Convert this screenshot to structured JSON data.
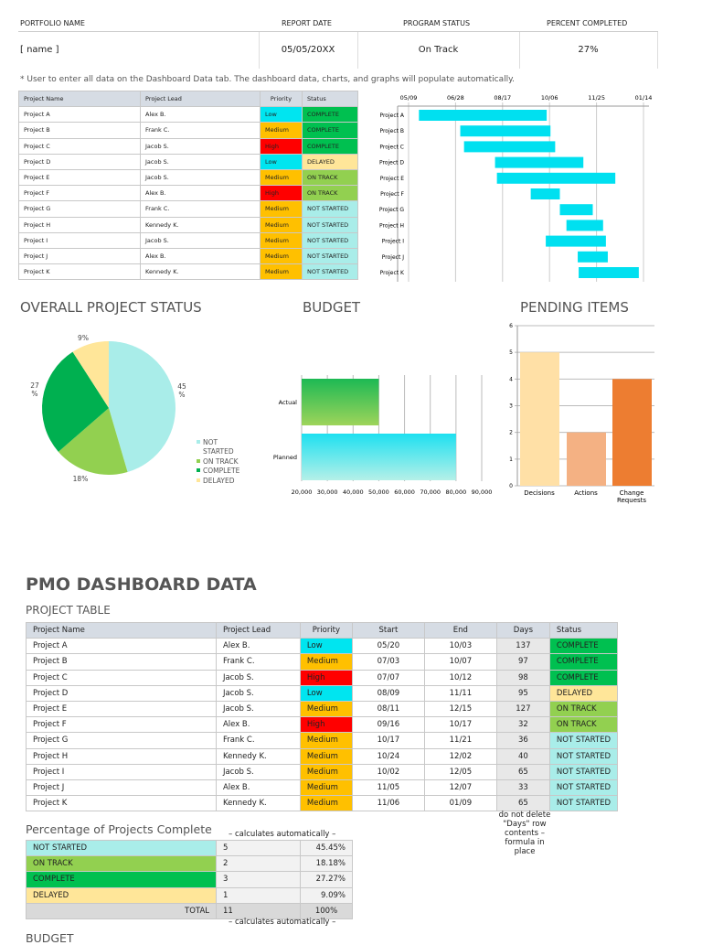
{
  "header": {
    "labels": [
      "PORTFOLIO NAME",
      "REPORT DATE",
      "PROGRAM STATUS",
      "PERCENT COMPLETED"
    ],
    "values": [
      "[ name ]",
      "05/05/20XX",
      "On Track",
      "27%"
    ]
  },
  "note": "* User to enter all data on the Dashboard Data tab.  The dashboard data, charts, and graphs will populate automatically.",
  "colors": {
    "low": "#00e5f0",
    "medium": "#ffc000",
    "high": "#ff0000",
    "complete": "#00c050",
    "on_track": "#92d050",
    "delayed": "#ffe699",
    "not_started": "#a9ede9",
    "gantt": "#00e0f0",
    "header": "#d6dce4"
  },
  "project_columns": [
    "Project Name",
    "Project Lead",
    "Priority",
    "Start",
    "End",
    "Days",
    "Status"
  ],
  "projects": [
    {
      "name": "Project A",
      "lead": "Alex B.",
      "priority": "Low",
      "start": "05/20",
      "end": "10/03",
      "days": "137",
      "status": "COMPLETE"
    },
    {
      "name": "Project B",
      "lead": "Frank C.",
      "priority": "Medium",
      "start": "07/03",
      "end": "10/07",
      "days": "97",
      "status": "COMPLETE"
    },
    {
      "name": "Project C",
      "lead": "Jacob S.",
      "priority": "High",
      "start": "07/07",
      "end": "10/12",
      "days": "98",
      "status": "COMPLETE"
    },
    {
      "name": "Project D",
      "lead": "Jacob S.",
      "priority": "Low",
      "start": "08/09",
      "end": "11/11",
      "days": "95",
      "status": "DELAYED"
    },
    {
      "name": "Project E",
      "lead": "Jacob S.",
      "priority": "Medium",
      "start": "08/11",
      "end": "12/15",
      "days": "127",
      "status": "ON TRACK"
    },
    {
      "name": "Project F",
      "lead": "Alex B.",
      "priority": "High",
      "start": "09/16",
      "end": "10/17",
      "days": "32",
      "status": "ON TRACK"
    },
    {
      "name": "Project G",
      "lead": "Frank C.",
      "priority": "Medium",
      "start": "10/17",
      "end": "11/21",
      "days": "36",
      "status": "NOT STARTED"
    },
    {
      "name": "Project H",
      "lead": "Kennedy K.",
      "priority": "Medium",
      "start": "10/24",
      "end": "12/02",
      "days": "40",
      "status": "NOT STARTED"
    },
    {
      "name": "Project I",
      "lead": "Jacob S.",
      "priority": "Medium",
      "start": "10/02",
      "end": "12/05",
      "days": "65",
      "status": "NOT STARTED"
    },
    {
      "name": "Project J",
      "lead": "Alex B.",
      "priority": "Medium",
      "start": "11/05",
      "end": "12/07",
      "days": "33",
      "status": "NOT STARTED"
    },
    {
      "name": "Project K",
      "lead": "Kennedy K.",
      "priority": "Medium",
      "start": "11/06",
      "end": "01/09",
      "days": "65",
      "status": "NOT STARTED"
    }
  ],
  "gantt": {
    "ticks": [
      "05/09",
      "06/28",
      "08/17",
      "10/06",
      "11/25",
      "01/14"
    ]
  },
  "sections": {
    "overall": "OVERALL PROJECT STATUS",
    "budget": "BUDGET",
    "pending": "PENDING ITEMS",
    "pmo_title": "PMO DASHBOARD DATA",
    "project_table": "PROJECT TABLE",
    "pct_title": "Percentage of Projects Complete",
    "calc_note": "– calculates automatically –",
    "days_note": "do not delete \"Days\" row contents – formula in place",
    "budget_bottom": "BUDGET"
  },
  "chart_data": [
    {
      "type": "pie",
      "slices": [
        {
          "label": "NOT STARTED",
          "value": 45.45,
          "data_label": "45 %",
          "color": "#a9ede9"
        },
        {
          "label": "ON TRACK",
          "value": 18.18,
          "data_label": "18%",
          "color": "#92d050"
        },
        {
          "label": "COMPLETE",
          "value": 27.27,
          "data_label": "27 %",
          "color": "#00b050"
        },
        {
          "label": "DELAYED",
          "value": 9.09,
          "data_label": "9%",
          "color": "#ffe699"
        }
      ],
      "legend": "right"
    },
    {
      "type": "bar",
      "orientation": "horizontal",
      "categories": [
        "Actual",
        "Planned"
      ],
      "values": [
        50000,
        80000
      ],
      "xlim": [
        20000,
        90000
      ],
      "ticks": [
        "20,000",
        "30,000",
        "40,000",
        "50,000",
        "60,000",
        "70,000",
        "80,000",
        "90,000"
      ]
    },
    {
      "type": "bar",
      "categories": [
        "Decisions",
        "Actions",
        "Change Requests"
      ],
      "values": [
        5,
        2,
        4
      ],
      "colors": [
        "#ffe0a6",
        "#f4b183",
        "#ed7d31"
      ],
      "ylim": [
        0,
        6
      ],
      "ticks": [
        "0",
        "1",
        "2",
        "3",
        "4",
        "5",
        "6"
      ]
    }
  ],
  "summary": {
    "rows": [
      {
        "label": "NOT STARTED",
        "count": "5",
        "pct": "45.45%"
      },
      {
        "label": "ON TRACK",
        "count": "2",
        "pct": "18.18%"
      },
      {
        "label": "COMPLETE",
        "count": "3",
        "pct": "27.27%"
      },
      {
        "label": "DELAYED",
        "count": "1",
        "pct": "9.09%"
      }
    ],
    "total": {
      "label": "TOTAL",
      "count": "11",
      "pct": "100%"
    }
  }
}
